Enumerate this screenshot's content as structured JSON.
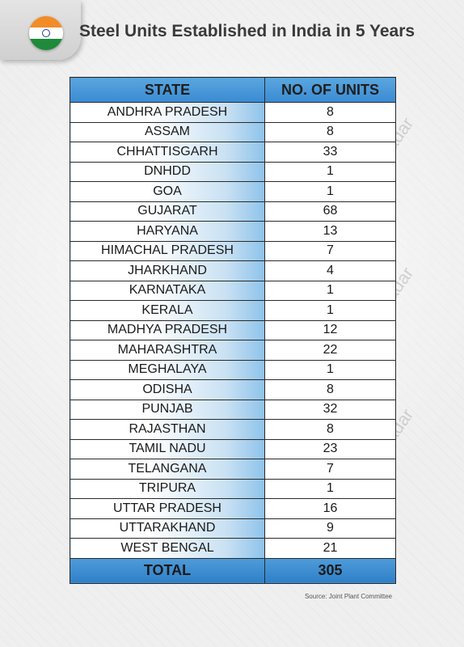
{
  "header": {
    "title": "Steel Units Established in India in 5 Years"
  },
  "colors": {
    "header_blue": "#3a8ad3",
    "state_gradient_end": "#8ec3ea",
    "title_text": "#3a3a3a",
    "flag_saffron": "#f28c28",
    "flag_green": "#1f8a3a"
  },
  "icons": {
    "flag": "india-flag-icon"
  },
  "watermark": "SteelRadar",
  "source": "Source: Joint Plant Committee",
  "chart_data": {
    "type": "table",
    "columns": [
      "STATE",
      "NO. OF UNITS"
    ],
    "rows": [
      [
        "ANDHRA PRADESH",
        "8"
      ],
      [
        "ASSAM",
        "8"
      ],
      [
        "CHHATTISGARH",
        "33"
      ],
      [
        "DNHDD",
        "1"
      ],
      [
        "GOA",
        "1"
      ],
      [
        "GUJARAT",
        "68"
      ],
      [
        "HARYANA",
        "13"
      ],
      [
        "HIMACHAL PRADESH",
        "7"
      ],
      [
        "JHARKHAND",
        "4"
      ],
      [
        "KARNATAKA",
        "1"
      ],
      [
        "KERALA",
        "1"
      ],
      [
        "MADHYA PRADESH",
        "12"
      ],
      [
        "MAHARASHTRA",
        "22"
      ],
      [
        "MEGHALAYA",
        "1"
      ],
      [
        "ODISHA",
        "8"
      ],
      [
        "PUNJAB",
        "32"
      ],
      [
        "RAJASTHAN",
        "8"
      ],
      [
        "TAMIL NADU",
        "23"
      ],
      [
        "TELANGANA",
        "7"
      ],
      [
        "TRIPURA",
        "1"
      ],
      [
        "UTTAR PRADESH",
        "16"
      ],
      [
        "UTTARAKHAND",
        "9"
      ],
      [
        "WEST BENGAL",
        "21"
      ]
    ],
    "total": [
      "TOTAL",
      "305"
    ]
  }
}
